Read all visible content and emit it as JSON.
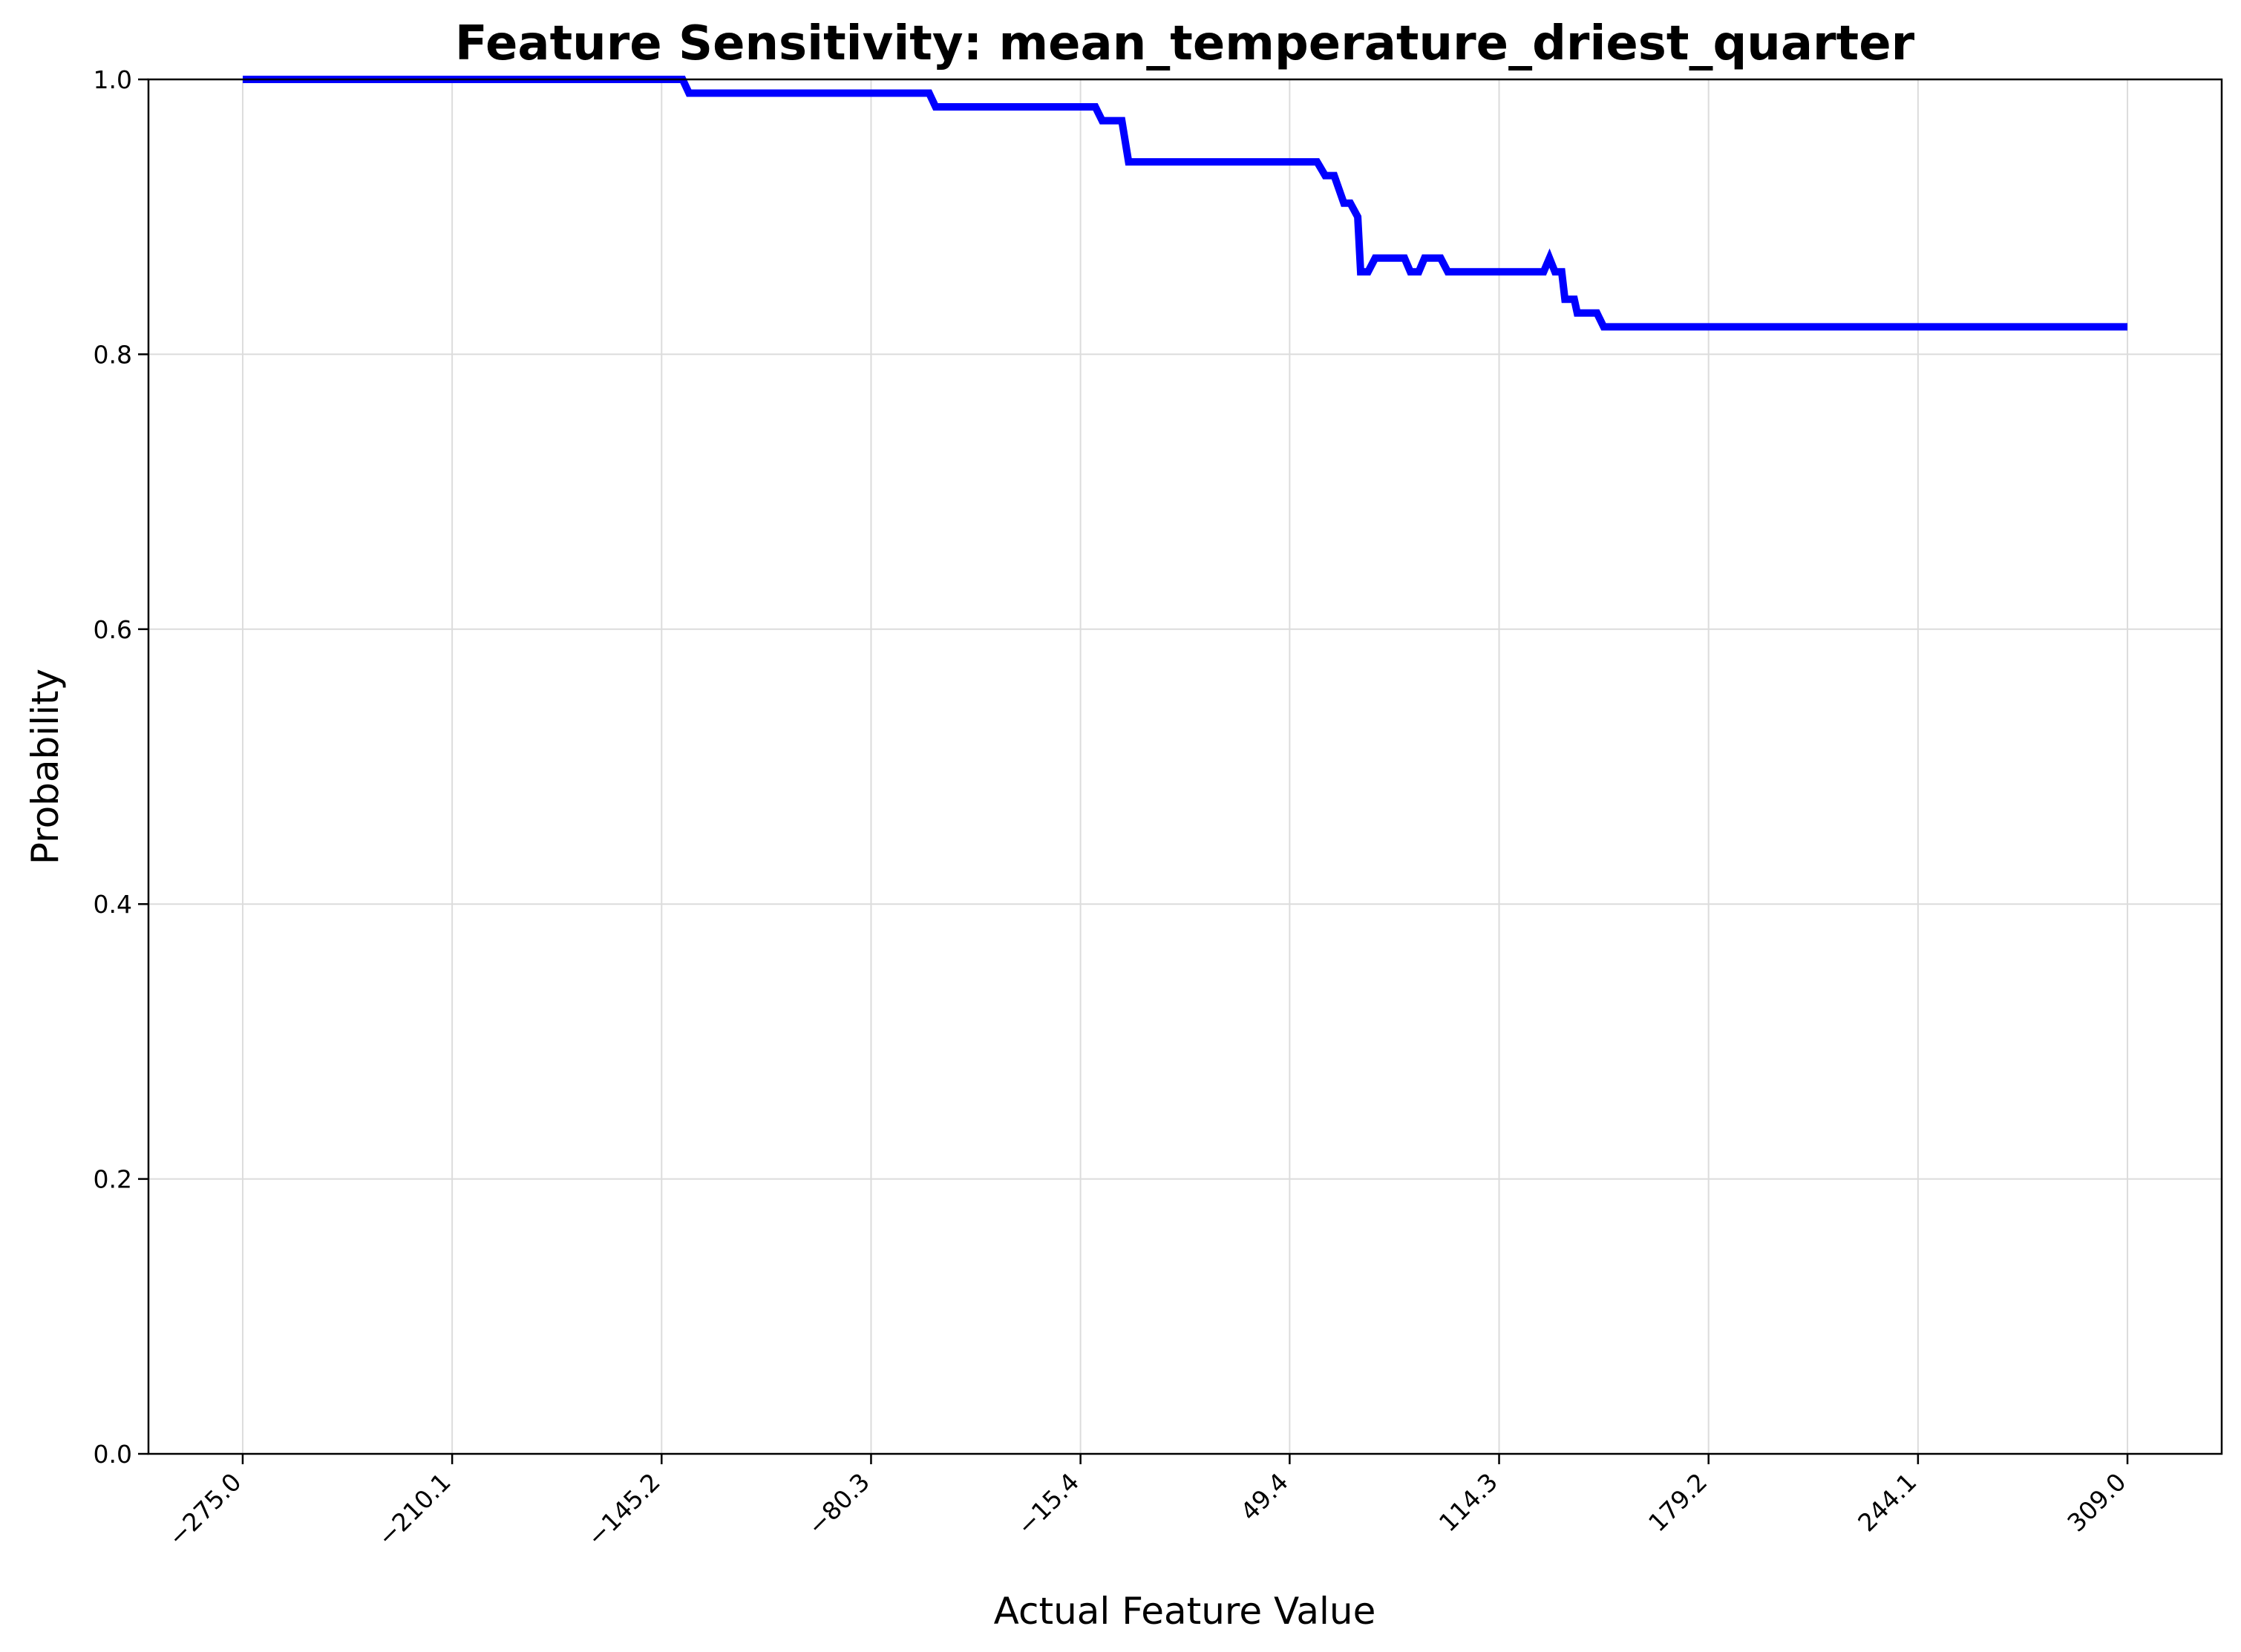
{
  "chart_data": {
    "type": "line",
    "title": "Feature Sensitivity: mean_temperature_driest_quarter",
    "xlabel": "Actual Feature Value",
    "ylabel": "Probability",
    "xlim": [
      -304.2,
      338.2
    ],
    "ylim": [
      0,
      1
    ],
    "grid": true,
    "x_ticks": [
      "−275.0",
      "−210.1",
      "−145.2",
      "−80.3",
      "−15.4",
      "49.4",
      "114.3",
      "179.2",
      "244.1",
      "309.0"
    ],
    "y_ticks": [
      "0.0",
      "0.2",
      "0.4",
      "0.6",
      "0.8",
      "1.0"
    ],
    "series": [
      {
        "color": "#0000ff",
        "x": [
          -275.0,
          -138.7,
          -136.7,
          -62.3,
          -60.3,
          -10.8,
          -8.7,
          -2.6,
          -0.5,
          57.9,
          60.4,
          63.2,
          66.2,
          68.2,
          70.5,
          71.4,
          73.7,
          75.9,
          85.0,
          86.8,
          89.4,
          91.2,
          96.2,
          98.4,
          128.1,
          129.9,
          131.6,
          133.7,
          134.7,
          137.6,
          138.5,
          144.6,
          146.7,
          309.0
        ],
        "y": [
          1.0,
          1.0,
          0.99,
          0.99,
          0.98,
          0.98,
          0.97,
          0.97,
          0.94,
          0.94,
          0.93,
          0.93,
          0.91,
          0.91,
          0.9,
          0.86,
          0.86,
          0.87,
          0.87,
          0.86,
          0.86,
          0.87,
          0.87,
          0.86,
          0.86,
          0.87,
          0.86,
          0.86,
          0.84,
          0.84,
          0.83,
          0.83,
          0.82,
          0.82
        ]
      }
    ]
  }
}
